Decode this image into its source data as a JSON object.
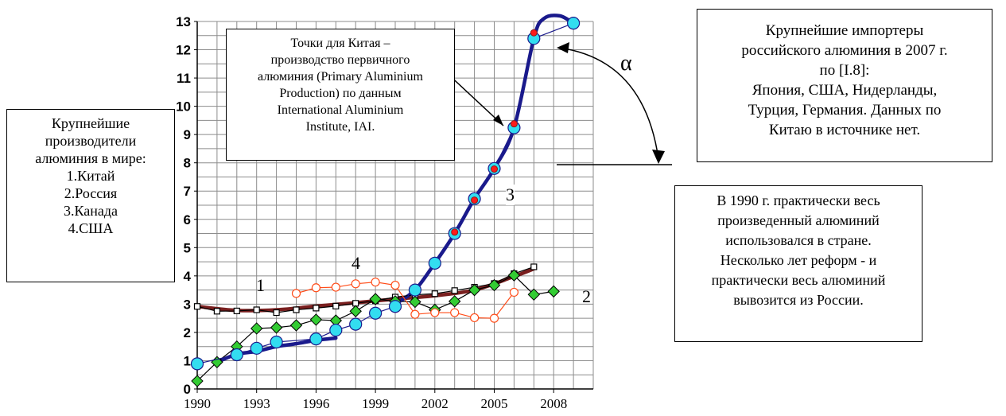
{
  "chart_data": {
    "type": "line",
    "xlim": [
      1990,
      2010
    ],
    "ylim": [
      0,
      13
    ],
    "x_ticks": [
      1990,
      1993,
      1996,
      1999,
      2002,
      2005,
      2008
    ],
    "y_ticks": [
      0,
      1,
      2,
      3,
      4,
      5,
      6,
      7,
      8,
      9,
      10,
      11,
      12,
      13
    ],
    "grid": true,
    "series": [
      {
        "id": "1",
        "marker": "square",
        "color": "#000000",
        "marker_fill": "#ffffff",
        "points": [
          [
            1990,
            2.92
          ],
          [
            1991,
            2.75
          ],
          [
            1992,
            2.76
          ],
          [
            1993,
            2.8
          ],
          [
            1994,
            2.7
          ],
          [
            1995,
            2.8
          ],
          [
            1996,
            2.86
          ],
          [
            1997,
            2.93
          ],
          [
            1998,
            3.03
          ],
          [
            1999,
            3.12
          ],
          [
            2000,
            3.25
          ],
          [
            2001,
            3.33
          ],
          [
            2002,
            3.37
          ],
          [
            2003,
            3.48
          ],
          [
            2004,
            3.6
          ],
          [
            2005,
            3.73
          ],
          [
            2006,
            4.08
          ],
          [
            2007,
            4.32
          ]
        ]
      },
      {
        "id": "2",
        "marker": "diamond",
        "color": "#000000",
        "marker_fill": "#33cc33",
        "points": [
          [
            1990,
            0.28
          ],
          [
            1991,
            0.95
          ],
          [
            1992,
            1.5
          ],
          [
            1993,
            2.14
          ],
          [
            1994,
            2.17
          ],
          [
            1995,
            2.25
          ],
          [
            1996,
            2.45
          ],
          [
            1997,
            2.42
          ],
          [
            1998,
            2.75
          ],
          [
            1999,
            3.18
          ],
          [
            2000,
            3.1
          ],
          [
            2001,
            3.08
          ],
          [
            2002,
            2.8
          ],
          [
            2003,
            3.1
          ],
          [
            2004,
            3.5
          ],
          [
            2005,
            3.67
          ],
          [
            2006,
            4.02
          ],
          [
            2007,
            3.34
          ],
          [
            2008,
            3.45
          ]
        ]
      },
      {
        "id": "3",
        "marker": "circle",
        "color": "#1a1a8c",
        "marker_fill": "#33ddf0",
        "points": [
          [
            1990,
            0.89
          ],
          [
            1992,
            1.21
          ],
          [
            1993,
            1.44
          ],
          [
            1994,
            1.66
          ],
          [
            1996,
            1.77
          ],
          [
            1997,
            2.08
          ],
          [
            1998,
            2.29
          ],
          [
            1999,
            2.68
          ],
          [
            2000,
            2.92
          ],
          [
            2001,
            3.5
          ],
          [
            2002,
            4.45
          ],
          [
            2003,
            5.5
          ],
          [
            2004,
            6.73
          ],
          [
            2005,
            7.8
          ],
          [
            2006,
            9.24
          ],
          [
            2007,
            12.4
          ],
          [
            2009,
            12.94
          ]
        ]
      },
      {
        "id": "4",
        "marker": "circle",
        "color": "#ff4d1a",
        "marker_fill": "#ffffff",
        "points": [
          [
            1995,
            3.38
          ],
          [
            1996,
            3.58
          ],
          [
            1997,
            3.6
          ],
          [
            1998,
            3.72
          ],
          [
            1999,
            3.78
          ],
          [
            2000,
            3.67
          ],
          [
            2001,
            2.64
          ],
          [
            2002,
            2.7
          ],
          [
            2003,
            2.7
          ],
          [
            2004,
            2.52
          ],
          [
            2005,
            2.5
          ],
          [
            2006,
            3.42
          ]
        ]
      },
      {
        "id": "china-primary",
        "marker": "dot",
        "color": "#8b1a1a",
        "marker_fill": "#ff1a1a",
        "points": [
          [
            2003,
            5.55
          ],
          [
            2004,
            6.68
          ],
          [
            2005,
            7.78
          ],
          [
            2006,
            9.38
          ],
          [
            2007,
            12.6
          ]
        ]
      }
    ],
    "trend_lines": [
      {
        "color": "#7a1f1f",
        "points": [
          [
            1990,
            2.92
          ],
          [
            1992,
            2.78
          ],
          [
            1994,
            2.8
          ],
          [
            1996,
            2.93
          ],
          [
            1998,
            3.05
          ],
          [
            2000,
            3.18
          ],
          [
            2002,
            3.3
          ],
          [
            2004,
            3.5
          ],
          [
            2006,
            3.98
          ],
          [
            2007,
            4.25
          ]
        ]
      },
      {
        "color": "#1a1a8c",
        "points": [
          [
            1991,
            0.95
          ],
          [
            1992,
            1.23
          ],
          [
            1993,
            1.33
          ],
          [
            1994,
            1.5
          ],
          [
            1995,
            1.6
          ],
          [
            1996,
            1.72
          ],
          [
            1997,
            1.8
          ]
        ]
      },
      {
        "color": "#1a1a8c",
        "points": [
          [
            2000,
            3.0
          ],
          [
            2001,
            3.5
          ],
          [
            2002,
            4.45
          ],
          [
            2003,
            5.5
          ],
          [
            2004,
            6.73
          ],
          [
            2005,
            7.8
          ],
          [
            2006,
            9.24
          ],
          [
            2007,
            12.4
          ],
          [
            2007.5,
            13.1
          ],
          [
            2008.3,
            13.2
          ],
          [
            2009,
            12.94
          ]
        ]
      }
    ],
    "annotations": {
      "label_1": "1",
      "label_2": "2",
      "label_3": "3",
      "label_4": "4",
      "alpha": "α"
    }
  },
  "producers_box": {
    "lines": [
      "Крупнейшие",
      "производители",
      "алюминия в мире:",
      "1.Китай",
      "2.Россия",
      "3.Канада",
      "4.США"
    ]
  },
  "china_note": {
    "lines": [
      "Точки для Китая –",
      "производство первичного",
      "алюминия (Primary Aluminium",
      "Production) по данным",
      "International Aluminium",
      "Institute, IAI."
    ]
  },
  "importers_box": {
    "lines": [
      "Крупнейшие импортеры",
      "российского алюминия в 2007 г.",
      "по [I.8]:",
      "Япония, США, Нидерланды,",
      "Турция, Германия. Данных по",
      "Китаю в источнике нет."
    ]
  },
  "reforms_box": {
    "lines": [
      "В 1990 г. практически весь",
      "произведенный алюминий",
      "использовался в стране.",
      "Несколько лет реформ - и",
      "практически весь алюминий",
      "вывозится  из России."
    ]
  }
}
